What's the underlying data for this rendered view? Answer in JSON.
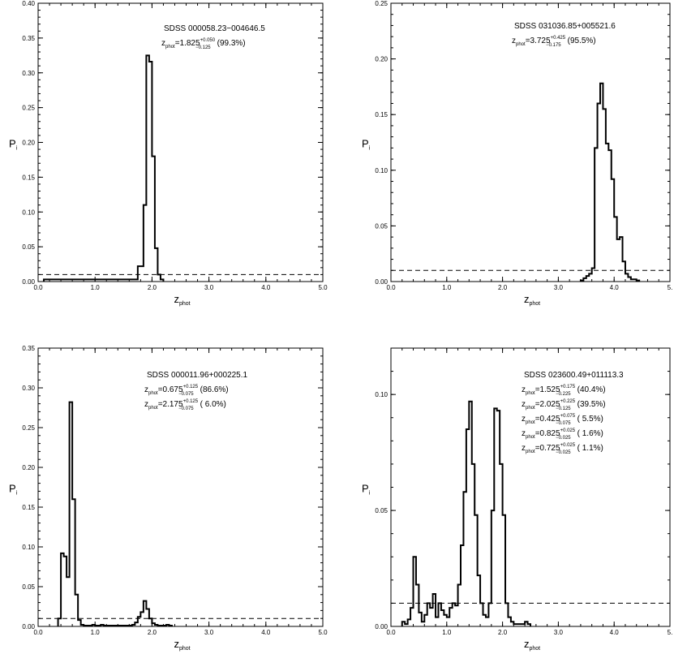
{
  "chart_data": [
    {
      "type": "line",
      "xlabel": "z",
      "xlabel_sub": "phot",
      "ylabel": "P",
      "ylabel_sub": "i",
      "xlim": [
        0,
        5
      ],
      "ylim": [
        0,
        0.4
      ],
      "xticks": [
        "0.0",
        "1.0",
        "2.0",
        "3.0",
        "4.0",
        "5.0"
      ],
      "yticks": [
        "0.00",
        "0.05",
        "0.10",
        "0.15",
        "0.20",
        "0.25",
        "0.30",
        "0.35",
        "0.40"
      ],
      "threshold": 0.01,
      "annotation": {
        "object": "SDSS 000058.23−004646.5",
        "solutions": [
          {
            "prefix": "z",
            "sub": "phot",
            "value": "=1.825",
            "plus": "+0.050",
            "minus": "−0.125",
            "pct": "(99.3%)"
          }
        ]
      },
      "bin_width": 0.05,
      "series": [
        {
          "x0": 0.1,
          "values": [
            0.003,
            0.003,
            0.003,
            0.003,
            0.003,
            0.003,
            0.003,
            0.003,
            0.003,
            0.003,
            0.003,
            0.003,
            0.003,
            0.003,
            0.003,
            0.003,
            0.003,
            0.003,
            0.003,
            0.003,
            0.003,
            0.003,
            0.003,
            0.003,
            0.003,
            0.003,
            0.003,
            0.003,
            0.003,
            0.003,
            0.003,
            0.003,
            0.003,
            0.022,
            0.022,
            0.11,
            0.325,
            0.316,
            0.18,
            0.048,
            0.01,
            0.003
          ]
        }
      ]
    },
    {
      "type": "line",
      "xlabel": "z",
      "xlabel_sub": "phot",
      "ylabel": "P",
      "ylabel_sub": "i",
      "xlim": [
        0,
        5
      ],
      "ylim": [
        0,
        0.25
      ],
      "xticks": [
        "0.0",
        "1.0",
        "2.0",
        "3.0",
        "4.0",
        "5."
      ],
      "yticks": [
        "0.00",
        "0.05",
        "0.10",
        "0.15",
        "0.20",
        "0.25"
      ],
      "threshold": 0.01,
      "annotation": {
        "object": "SDSS 031036.85+005521.6",
        "solutions": [
          {
            "prefix": "z",
            "sub": "phot",
            "value": "=3.725",
            "plus": "+0.425",
            "minus": "−0.175",
            "pct": "(95.5%)"
          }
        ]
      },
      "bin_width": 0.05,
      "series": [
        {
          "x0": 3.4,
          "values": [
            0.001,
            0.003,
            0.005,
            0.007,
            0.012,
            0.12,
            0.16,
            0.178,
            0.155,
            0.124,
            0.118,
            0.092,
            0.058,
            0.038,
            0.04,
            0.018,
            0.007,
            0.004,
            0.002,
            0.002,
            0.001
          ]
        }
      ]
    },
    {
      "type": "line",
      "xlabel": "z",
      "xlabel_sub": "phot",
      "ylabel": "P",
      "ylabel_sub": "i",
      "xlim": [
        0,
        5
      ],
      "ylim": [
        0,
        0.35
      ],
      "xticks": [
        "0.0",
        "1.0",
        "2.0",
        "3.0",
        "4.0",
        "5.0"
      ],
      "yticks": [
        "0.00",
        "0.05",
        "0.10",
        "0.15",
        "0.20",
        "0.25",
        "0.30",
        "0.35"
      ],
      "threshold": 0.01,
      "annotation": {
        "object": "SDSS 000011.96+000225.1",
        "solutions": [
          {
            "prefix": "z",
            "sub": "phot",
            "value": "=0.675",
            "plus": "+0.125",
            "minus": "−0.075",
            "pct": "(86.6%)"
          },
          {
            "prefix": "z",
            "sub": "phot",
            "value": "=2.175",
            "plus": "+0.125",
            "minus": "−0.075",
            "pct": "( 6.0%)"
          }
        ]
      },
      "bin_width": 0.05,
      "series": [
        {
          "x0": 0.35,
          "values": [
            0.01,
            0.092,
            0.088,
            0.062,
            0.282,
            0.16,
            0.04,
            0.008,
            0.002,
            0.001,
            0.001,
            0.001,
            0.002,
            0.001,
            0.001,
            0.002,
            0.001,
            0.001,
            0.001,
            0.001,
            0.001,
            0.001,
            0.001,
            0.001,
            0.001,
            0.001,
            0.002,
            0.005,
            0.012,
            0.018,
            0.032,
            0.022,
            0.01,
            0.004,
            0.002,
            0.001,
            0.001,
            0.001,
            0.002,
            0.001
          ]
        }
      ]
    },
    {
      "type": "line",
      "xlabel": "z",
      "xlabel_sub": "phot",
      "ylabel": "P",
      "ylabel_sub": "i",
      "xlim": [
        0,
        5
      ],
      "ylim": [
        0,
        0.12
      ],
      "xticks": [
        "0.0",
        "1.0",
        "2.0",
        "3.0",
        "4.0",
        "5."
      ],
      "yticks": [
        "0.00",
        "0.05",
        "0.10"
      ],
      "yticks_values": [
        0,
        0.05,
        0.1
      ],
      "threshold": 0.01,
      "annotation": {
        "object": "SDSS 023600.49+011113.3",
        "solutions": [
          {
            "prefix": "z",
            "sub": "phot",
            "value": "=1.525",
            "plus": "+0.175",
            "minus": "−0.225",
            "pct": "(40.4%)"
          },
          {
            "prefix": "z",
            "sub": "phot",
            "value": "=2.025",
            "plus": "+0.225",
            "minus": "−0.125",
            "pct": "(39.5%)"
          },
          {
            "prefix": "z",
            "sub": "phot",
            "value": "=0.425",
            "plus": "+0.075",
            "minus": "−0.075",
            "pct": "( 5.5%)"
          },
          {
            "prefix": "z",
            "sub": "phot",
            "value": "=0.825",
            "plus": "+0.025",
            "minus": "−0.025",
            "pct": "( 1.6%)"
          },
          {
            "prefix": "z",
            "sub": "phot",
            "value": "=0.725",
            "plus": "+0.025",
            "minus": "−0.025",
            "pct": "( 1.1%)"
          }
        ]
      },
      "bin_width": 0.05,
      "series": [
        {
          "x0": 0.2,
          "values": [
            0.002,
            0.001,
            0.003,
            0.008,
            0.03,
            0.018,
            0.006,
            0.002,
            0.005,
            0.01,
            0.008,
            0.014,
            0.004,
            0.01,
            0.007,
            0.005,
            0.004,
            0.008,
            0.01,
            0.009,
            0.018,
            0.035,
            0.058,
            0.085,
            0.097,
            0.07,
            0.048,
            0.022,
            0.01,
            0.005,
            0.004,
            0.01,
            0.05,
            0.094,
            0.093,
            0.07,
            0.048,
            0.01,
            0.004,
            0.002,
            0.001,
            0.001,
            0.001,
            0.001,
            0.002,
            0.001
          ]
        }
      ]
    }
  ]
}
